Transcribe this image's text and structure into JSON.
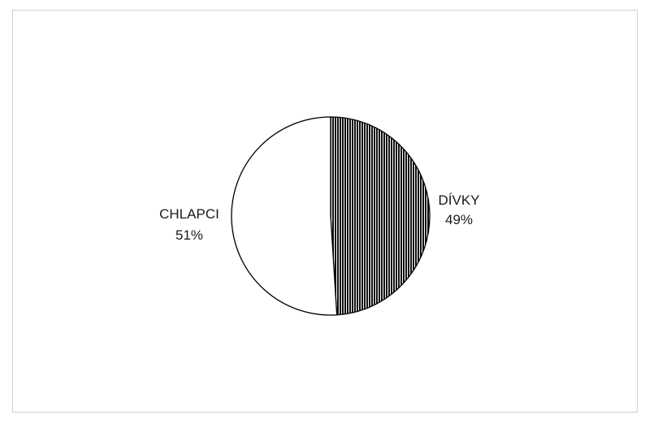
{
  "chart_data": {
    "type": "pie",
    "title": "",
    "slices": [
      {
        "label": "DÍVKY",
        "value": 49,
        "value_label": "49%",
        "fill": "hatched-vertical",
        "color": "#000000"
      },
      {
        "label": "CHLAPCI",
        "value": 51,
        "value_label": "51%",
        "fill": "solid",
        "color": "#ffffff"
      }
    ],
    "start_angle_deg": 0,
    "direction": "clockwise",
    "legend": "none",
    "outline_color": "#000000"
  }
}
